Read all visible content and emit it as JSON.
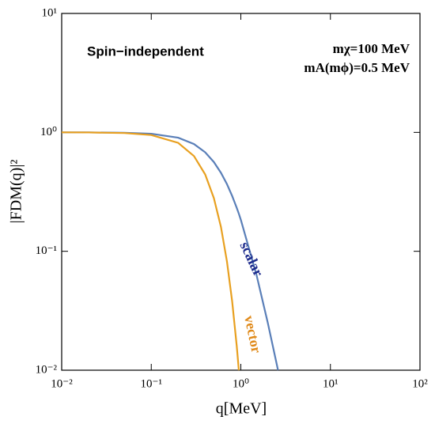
{
  "chart_data": {
    "type": "line",
    "x_label": "q[MeV]",
    "y_label": "|FDM(q)|²",
    "annotations": [
      "Spin−independent",
      "mχ=100 MeV",
      "mA(mϕ)=0.5 MeV"
    ],
    "x": [
      0.01,
      0.02,
      0.05,
      0.1,
      0.2,
      0.3,
      0.4,
      0.5,
      0.6,
      0.7,
      0.8,
      0.9,
      0.95,
      1,
      1.5,
      2,
      2.5,
      2.6
    ],
    "series": [
      {
        "name": "scalar",
        "color": "#5a7fb8",
        "label_color": "#1c2a8c",
        "values": [
          0.9997,
          0.999,
          0.993,
          0.974,
          0.902,
          0.798,
          0.68,
          0.563,
          0.457,
          0.367,
          0.292,
          0.232,
          0.207,
          0.184,
          0.0628,
          0.025,
          0.0115,
          0.01
        ]
      },
      {
        "name": "vector",
        "color": "#e8a020",
        "label_color": "#e08a1a",
        "values": [
          1.0,
          0.998,
          0.987,
          0.95,
          0.816,
          0.632,
          0.443,
          0.28,
          0.16,
          0.082,
          0.038,
          0.016,
          0.01,
          null,
          null,
          null,
          null,
          null
        ]
      }
    ],
    "log_x": true,
    "log_y": true,
    "xlim": [
      0.01,
      100
    ],
    "ylim": [
      0.01,
      10
    ],
    "xticks": [
      {
        "value": 0.01,
        "label": "10⁻²"
      },
      {
        "value": 0.1,
        "label": "10⁻¹"
      },
      {
        "value": 1,
        "label": "10⁰"
      },
      {
        "value": 10,
        "label": "10¹"
      },
      {
        "value": 100,
        "label": "10²"
      }
    ],
    "yticks": [
      {
        "value": 0.01,
        "label": "10⁻²"
      },
      {
        "value": 0.1,
        "label": "10⁻¹"
      },
      {
        "value": 1,
        "label": "10⁰"
      },
      {
        "value": 10,
        "label": "10¹"
      }
    ]
  }
}
